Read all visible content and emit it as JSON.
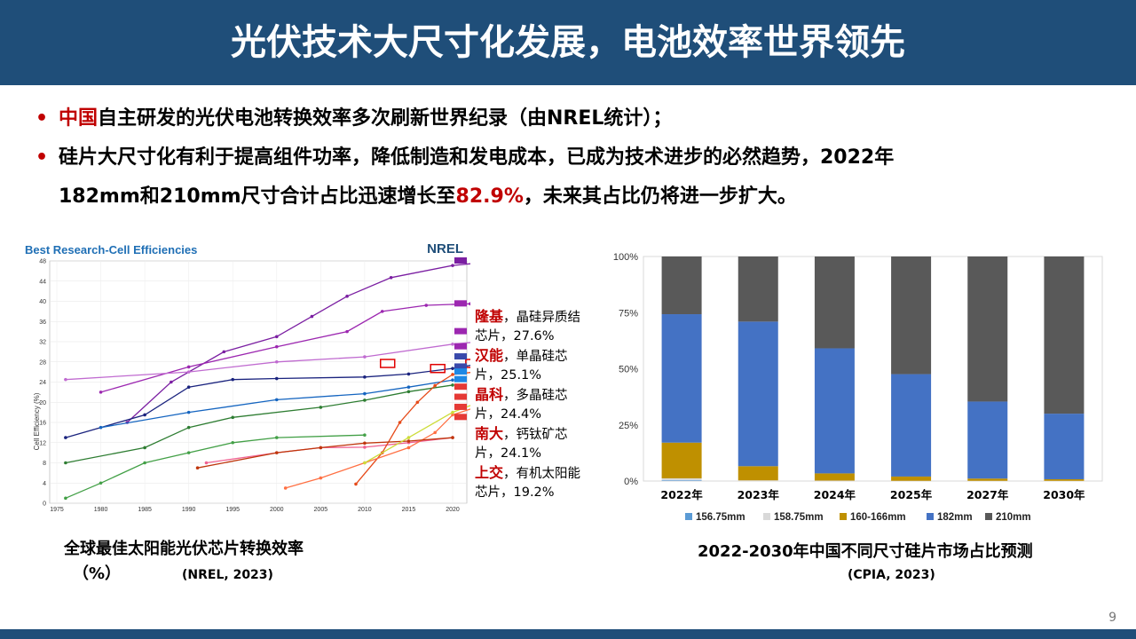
{
  "title": "光伏技术大尺寸化发展，电池效率世界领先",
  "bullets": [
    {
      "dot": "•",
      "highlight": "中国",
      "text": "自主研发的光伏电池转换效率多次刷新世界纪录（由NREL统计）；"
    },
    {
      "dot": "•",
      "text_a": "硅片大尺寸化有利于提高组件功率，降低制造和发电成本，已成为技术进步的必然趋势，2022年",
      "text_b": "182mm和210mm尺寸合计占比迅速增长至",
      "highlight": "82.9%",
      "text_c": "，未来其占比仍将进一步扩大。"
    }
  ],
  "nrel": {
    "title": "Best Research-Cell Efficiencies",
    "logo": "NREL",
    "ylabel": "Cell Efficiency (%)",
    "yticks": [
      "0",
      "4",
      "8",
      "12",
      "16",
      "20",
      "24",
      "28",
      "32",
      "36",
      "40",
      "44",
      "48"
    ],
    "xticks": [
      "1975",
      "1980",
      "1985",
      "1990",
      "1995",
      "2000",
      "2005",
      "2010",
      "2015",
      "2020"
    ]
  },
  "annotations": [
    {
      "company": "隆基",
      "desc": "，晶硅异质结芯片，27.6%"
    },
    {
      "company": "汉能",
      "desc": "，单晶硅芯片，25.1%"
    },
    {
      "company": "晶科",
      "desc": "，多晶硅芯片，24.4%"
    },
    {
      "company": "南大",
      "desc": "，钙钛矿芯片，24.1%"
    },
    {
      "company": "上交",
      "desc": "，有机太阳能芯片，19.2%"
    }
  ],
  "captions": {
    "left_line1": "全球最佳太阳能光伏芯片转换效率",
    "left_line2": "（%）",
    "left_source": "(NREL, 2023)",
    "right": "2022-2030年中国不同尺寸硅片市场占比预测",
    "right_source": "(CPIA, 2023)"
  },
  "page_number": "9",
  "colors": {
    "title_bar": "#1f4e79",
    "highlight": "#c00000"
  },
  "chart_data": {
    "type": "bar",
    "stacked": true,
    "categories": [
      "2022年",
      "2023年",
      "2024年",
      "2025年",
      "2027年",
      "2030年"
    ],
    "yticks": [
      "0%",
      "25%",
      "50%",
      "75%",
      "100%"
    ],
    "ylim": [
      0,
      100
    ],
    "series": [
      {
        "name": "156.75mm",
        "color": "#5b9bd5",
        "values": [
          0.3,
          0.0,
          0.0,
          0.0,
          0.0,
          0.0
        ]
      },
      {
        "name": "158.75mm",
        "color": "#d9d9d9",
        "values": [
          0.9,
          0.3,
          0.2,
          0.1,
          0.1,
          0.1
        ]
      },
      {
        "name": "160-166mm",
        "color": "#bf9000",
        "values": [
          15.9,
          6.3,
          3.2,
          1.9,
          1.0,
          0.7
        ]
      },
      {
        "name": "182mm",
        "color": "#4472c4",
        "values": [
          57.2,
          64.4,
          55.7,
          45.6,
          34.3,
          29.2
        ]
      },
      {
        "name": "210mm",
        "color": "#595959",
        "values": [
          25.7,
          29.0,
          40.9,
          52.4,
          64.6,
          70.0
        ]
      }
    ],
    "legend_position": "bottom",
    "grid": false
  }
}
